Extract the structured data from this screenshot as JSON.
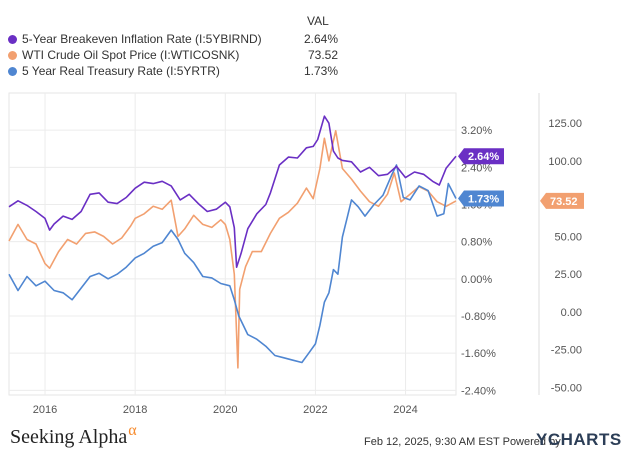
{
  "legend": {
    "header": "VAL",
    "items": [
      {
        "name": "5-Year Breakeven Inflation Rate (I:5YBIRND)",
        "value": "2.64%",
        "color": "#6a2fc4"
      },
      {
        "name": "WTI Crude Oil Spot Price (I:WTICOSNK)",
        "value": "73.52",
        "color": "#f2a070"
      },
      {
        "name": "5 Year Real Treasury Rate (I:5YRTR)",
        "value": "1.73%",
        "color": "#4f86d1"
      }
    ]
  },
  "chart_data": {
    "type": "line",
    "x_ticks": [
      "2016",
      "2018",
      "2020",
      "2022",
      "2024"
    ],
    "x_range": [
      2015.2,
      2025.12
    ],
    "left_axis": {
      "ticks": [
        "3.20%",
        "2.40%",
        "1.60%",
        "0.80%",
        "0.00%",
        "-0.80%",
        "-1.60%",
        "-2.40%"
      ],
      "range": [
        -2.5,
        4.0
      ]
    },
    "right_axis": {
      "ticks": [
        "125.00",
        "100.00",
        "75.00",
        "50.00",
        "25.00",
        "0.00",
        "-25.00",
        "-50.00"
      ],
      "range": [
        -55,
        145
      ]
    },
    "series": [
      {
        "name": "5-Year Breakeven Inflation Rate (I:5YBIRND)",
        "axis": "left",
        "color": "#6a2fc4",
        "last_label": "2.64%",
        "points": [
          [
            2015.2,
            1.55
          ],
          [
            2015.4,
            1.68
          ],
          [
            2015.6,
            1.58
          ],
          [
            2015.8,
            1.45
          ],
          [
            2016.0,
            1.3
          ],
          [
            2016.1,
            1.05
          ],
          [
            2016.2,
            1.18
          ],
          [
            2016.4,
            1.35
          ],
          [
            2016.6,
            1.28
          ],
          [
            2016.8,
            1.45
          ],
          [
            2017.0,
            1.82
          ],
          [
            2017.2,
            1.85
          ],
          [
            2017.4,
            1.65
          ],
          [
            2017.6,
            1.62
          ],
          [
            2017.8,
            1.75
          ],
          [
            2018.0,
            1.95
          ],
          [
            2018.2,
            2.08
          ],
          [
            2018.4,
            2.05
          ],
          [
            2018.6,
            2.1
          ],
          [
            2018.8,
            2.0
          ],
          [
            2019.0,
            1.7
          ],
          [
            2019.2,
            1.82
          ],
          [
            2019.4,
            1.62
          ],
          [
            2019.6,
            1.45
          ],
          [
            2019.8,
            1.5
          ],
          [
            2020.0,
            1.65
          ],
          [
            2020.1,
            1.55
          ],
          [
            2020.2,
            1.1
          ],
          [
            2020.25,
            0.25
          ],
          [
            2020.35,
            0.55
          ],
          [
            2020.5,
            1.08
          ],
          [
            2020.7,
            1.4
          ],
          [
            2020.9,
            1.6
          ],
          [
            2021.0,
            1.85
          ],
          [
            2021.2,
            2.45
          ],
          [
            2021.4,
            2.62
          ],
          [
            2021.6,
            2.6
          ],
          [
            2021.8,
            2.82
          ],
          [
            2021.95,
            2.85
          ],
          [
            2022.05,
            3.0
          ],
          [
            2022.2,
            3.5
          ],
          [
            2022.3,
            3.35
          ],
          [
            2022.4,
            2.75
          ],
          [
            2022.5,
            2.6
          ],
          [
            2022.6,
            2.55
          ],
          [
            2022.8,
            2.52
          ],
          [
            2023.0,
            2.3
          ],
          [
            2023.2,
            2.4
          ],
          [
            2023.4,
            2.22
          ],
          [
            2023.6,
            2.25
          ],
          [
            2023.8,
            2.42
          ],
          [
            2024.0,
            2.18
          ],
          [
            2024.2,
            2.3
          ],
          [
            2024.4,
            2.25
          ],
          [
            2024.6,
            2.1
          ],
          [
            2024.75,
            2.02
          ],
          [
            2024.9,
            2.38
          ],
          [
            2025.12,
            2.64
          ]
        ]
      },
      {
        "name": "WTI Crude Oil Spot Price (I:WTICOSNK)",
        "axis": "right",
        "color": "#f2a070",
        "last_label": "73.52",
        "points": [
          [
            2015.2,
            47
          ],
          [
            2015.4,
            58
          ],
          [
            2015.6,
            48
          ],
          [
            2015.8,
            45
          ],
          [
            2016.0,
            32
          ],
          [
            2016.1,
            29
          ],
          [
            2016.3,
            40
          ],
          [
            2016.5,
            48
          ],
          [
            2016.7,
            45
          ],
          [
            2016.9,
            52
          ],
          [
            2017.1,
            53
          ],
          [
            2017.3,
            50
          ],
          [
            2017.5,
            45
          ],
          [
            2017.7,
            49
          ],
          [
            2017.9,
            57
          ],
          [
            2018.0,
            62
          ],
          [
            2018.2,
            65
          ],
          [
            2018.4,
            70
          ],
          [
            2018.6,
            68
          ],
          [
            2018.8,
            74
          ],
          [
            2018.95,
            50
          ],
          [
            2019.1,
            55
          ],
          [
            2019.3,
            64
          ],
          [
            2019.5,
            58
          ],
          [
            2019.7,
            56
          ],
          [
            2019.9,
            61
          ],
          [
            2020.0,
            58
          ],
          [
            2020.1,
            48
          ],
          [
            2020.2,
            25
          ],
          [
            2020.28,
            -37
          ],
          [
            2020.32,
            15
          ],
          [
            2020.45,
            30
          ],
          [
            2020.6,
            40
          ],
          [
            2020.8,
            40
          ],
          [
            2021.0,
            52
          ],
          [
            2021.2,
            62
          ],
          [
            2021.4,
            66
          ],
          [
            2021.6,
            72
          ],
          [
            2021.8,
            82
          ],
          [
            2021.95,
            75
          ],
          [
            2022.1,
            95
          ],
          [
            2022.2,
            115
          ],
          [
            2022.3,
            100
          ],
          [
            2022.45,
            120
          ],
          [
            2022.6,
            95
          ],
          [
            2022.8,
            88
          ],
          [
            2023.0,
            80
          ],
          [
            2023.2,
            73
          ],
          [
            2023.4,
            70
          ],
          [
            2023.6,
            78
          ],
          [
            2023.75,
            92
          ],
          [
            2023.9,
            73
          ],
          [
            2024.1,
            78
          ],
          [
            2024.3,
            83
          ],
          [
            2024.5,
            80
          ],
          [
            2024.7,
            73
          ],
          [
            2024.9,
            70
          ],
          [
            2025.12,
            73.52
          ]
        ]
      },
      {
        "name": "5 Year Real Treasury Rate (I:5YRTR)",
        "axis": "left",
        "color": "#4f86d1",
        "last_label": "1.73%",
        "points": [
          [
            2015.2,
            0.1
          ],
          [
            2015.4,
            -0.25
          ],
          [
            2015.6,
            0.05
          ],
          [
            2015.8,
            -0.15
          ],
          [
            2016.0,
            -0.05
          ],
          [
            2016.2,
            -0.25
          ],
          [
            2016.4,
            -0.3
          ],
          [
            2016.6,
            -0.45
          ],
          [
            2016.8,
            -0.2
          ],
          [
            2017.0,
            0.05
          ],
          [
            2017.2,
            0.12
          ],
          [
            2017.4,
            0.0
          ],
          [
            2017.6,
            0.1
          ],
          [
            2017.8,
            0.25
          ],
          [
            2018.0,
            0.45
          ],
          [
            2018.2,
            0.55
          ],
          [
            2018.4,
            0.7
          ],
          [
            2018.6,
            0.78
          ],
          [
            2018.8,
            1.05
          ],
          [
            2018.95,
            0.85
          ],
          [
            2019.1,
            0.55
          ],
          [
            2019.3,
            0.35
          ],
          [
            2019.5,
            0.05
          ],
          [
            2019.7,
            0.02
          ],
          [
            2019.9,
            -0.1
          ],
          [
            2020.1,
            -0.15
          ],
          [
            2020.2,
            -0.45
          ],
          [
            2020.3,
            -0.8
          ],
          [
            2020.5,
            -1.2
          ],
          [
            2020.7,
            -1.3
          ],
          [
            2020.9,
            -1.45
          ],
          [
            2021.1,
            -1.65
          ],
          [
            2021.3,
            -1.7
          ],
          [
            2021.5,
            -1.75
          ],
          [
            2021.7,
            -1.8
          ],
          [
            2021.85,
            -1.6
          ],
          [
            2022.0,
            -1.4
          ],
          [
            2022.1,
            -1.0
          ],
          [
            2022.2,
            -0.5
          ],
          [
            2022.3,
            -0.3
          ],
          [
            2022.4,
            0.2
          ],
          [
            2022.5,
            0.1
          ],
          [
            2022.6,
            0.9
          ],
          [
            2022.7,
            1.3
          ],
          [
            2022.8,
            1.7
          ],
          [
            2022.95,
            1.55
          ],
          [
            2023.1,
            1.35
          ],
          [
            2023.3,
            1.6
          ],
          [
            2023.5,
            1.8
          ],
          [
            2023.7,
            2.25
          ],
          [
            2023.8,
            2.45
          ],
          [
            2023.95,
            1.75
          ],
          [
            2024.1,
            1.7
          ],
          [
            2024.3,
            2.0
          ],
          [
            2024.5,
            1.9
          ],
          [
            2024.7,
            1.35
          ],
          [
            2024.85,
            1.4
          ],
          [
            2024.95,
            2.05
          ],
          [
            2025.12,
            1.73
          ]
        ]
      }
    ]
  },
  "footer": {
    "brand": "Seeking Alpha",
    "brand_mark": "α",
    "timestamp": "Feb 12, 2025, 9:30 AM EST Powered by",
    "provider": "YCHARTS"
  }
}
